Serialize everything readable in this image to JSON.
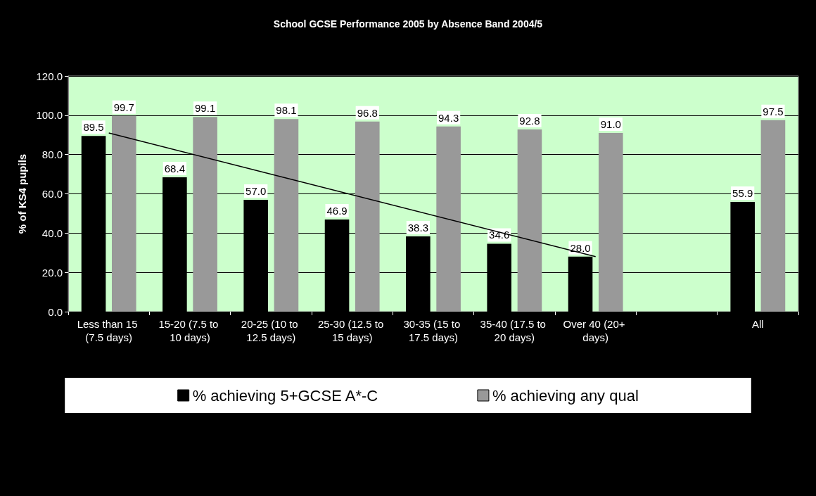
{
  "chart_data": {
    "type": "bar",
    "title": "School GCSE Performance 2005 by Absence Band 2004/5",
    "ylabel": "% of KS4 pupils",
    "categories": [
      "Less than 15 (7.5 days)",
      "15-20 (7.5 to 10 days)",
      "20-25 (10 to 12.5 days)",
      "25-30 (12.5 to 15 days)",
      "30-35 (15 to 17.5 days)",
      "35-40 (17.5 to 20 days)",
      "Over 40 (20+ days)",
      null,
      "All"
    ],
    "series": [
      {
        "name": "% achieving 5+GCSE A*-C",
        "color": "#000000",
        "values": [
          89.5,
          68.4,
          57.0,
          46.9,
          38.3,
          34.6,
          28.0,
          null,
          55.9
        ],
        "value_labels": [
          "89.5",
          "68.4",
          "57.0",
          "46.9",
          "38.3",
          "34.6",
          "28.0",
          null,
          "55.9"
        ]
      },
      {
        "name": "% achieving any qual",
        "color": "#999999",
        "values": [
          99.7,
          99.1,
          98.1,
          96.8,
          94.3,
          92.8,
          91.0,
          null,
          97.5
        ],
        "value_labels": [
          "99.7",
          "99.1",
          "98.1",
          "96.8",
          "94.3",
          "92.8",
          "91.0",
          null,
          "97.5"
        ]
      },
      {
        "type": "line",
        "color": "#000000",
        "x": [
          "Less than 15 (7.5 days)",
          "Over 40 (20+ days)"
        ],
        "values": [
          91,
          28
        ]
      }
    ],
    "ylim": [
      0,
      120
    ],
    "yticks": [
      {
        "value": 0,
        "label": "0.0"
      },
      {
        "value": 20,
        "label": "20.0"
      },
      {
        "value": 40,
        "label": "40.0"
      },
      {
        "value": 60,
        "label": "60.0"
      },
      {
        "value": 80,
        "label": "80.0"
      },
      {
        "value": 100,
        "label": "100.0"
      },
      {
        "value": 120,
        "label": "120.0"
      }
    ],
    "grid": "y",
    "legend": "bottom"
  }
}
